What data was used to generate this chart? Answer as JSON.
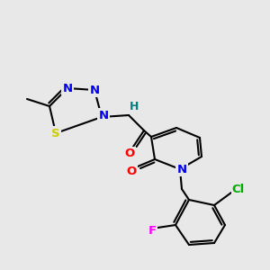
{
  "bg_color": "#e8e8e8",
  "atom_colors": {
    "N": "#0000ee",
    "O": "#ff0000",
    "S": "#cccc00",
    "Cl": "#00aa00",
    "F": "#ff00ff",
    "H": "#008080",
    "C": "#000000"
  },
  "bond_color": "#000000",
  "lw": 1.5,
  "fontsize": 9.5
}
